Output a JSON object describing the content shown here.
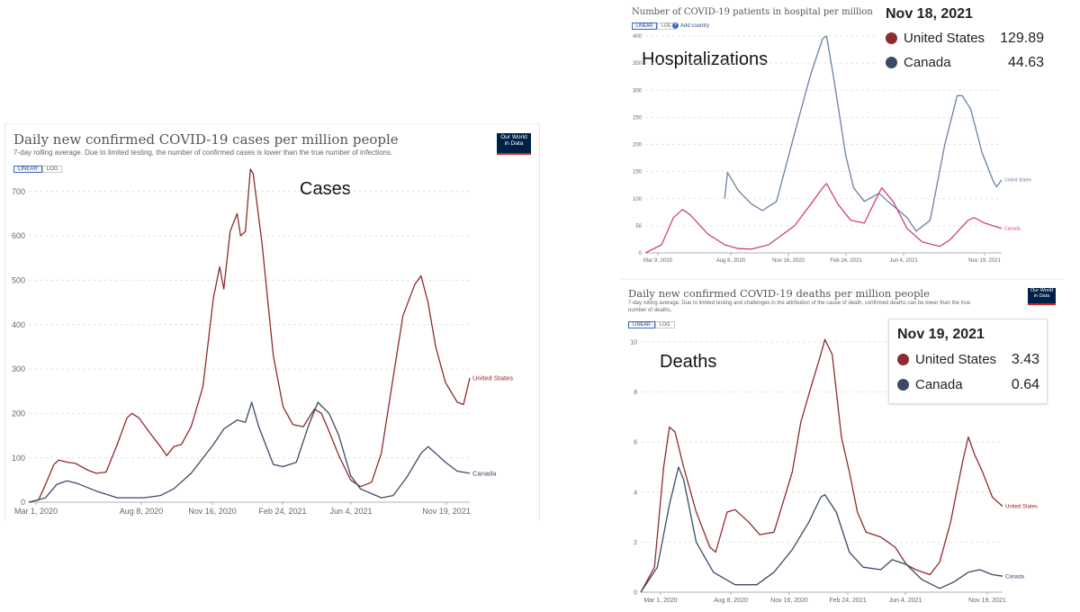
{
  "colors": {
    "us": "#8d2b2e",
    "canada": "#3b4a66",
    "us_hosp": "#6b7fa6",
    "canada_hosp": "#d0417a",
    "grid": "#dddddd",
    "axis_text": "#666666"
  },
  "cases": {
    "title": "Daily new confirmed COVID-19 cases per million people",
    "subtitle": "7-day rolling average. Due to limited testing, the number of confirmed cases is lower than the true number of infections.",
    "linear_label": "LINEAR",
    "log_label": "LOG",
    "logo_line1": "Our World",
    "logo_line2": "in Data",
    "big_label": "Cases"
  },
  "hosp": {
    "title": "Number of COVID-19 patients in hospital per million",
    "linear_label": "LINEAR",
    "log_label": "LOG",
    "add_country": "Add country",
    "big_label": "Hospitalizations",
    "tooltip": {
      "date": "Nov 18, 2021",
      "rows": [
        {
          "name": "United States",
          "value": "129.89"
        },
        {
          "name": "Canada",
          "value": "44.63"
        }
      ]
    }
  },
  "deaths": {
    "title": "Daily new confirmed COVID-19 deaths per million people",
    "subtitle_line1": "7-day rolling average. Due to limited testing and challenges in the attribution of the cause of death, confirmed deaths can be lower than the true",
    "subtitle_line2": "number of deaths.",
    "linear_label": "LINEAR",
    "log_label": "LOG",
    "logo_line1": "Our World",
    "logo_line2": "in Data",
    "big_label": "Deaths",
    "tooltip": {
      "date": "Nov 19, 2021",
      "rows": [
        {
          "name": "United States",
          "value": "3.43"
        },
        {
          "name": "Canada",
          "value": "0.64"
        }
      ]
    }
  },
  "chart_data": [
    {
      "type": "line",
      "title": "Daily new confirmed COVID-19 cases per million people",
      "x_ticks": [
        "Mar 1, 2020",
        "Aug 8, 2020",
        "Nov 16, 2020",
        "Feb 24, 2021",
        "Jun 4, 2021",
        "Nov 19, 2021"
      ],
      "x_range": [
        "2020-02-25",
        "2021-11-19"
      ],
      "ylim": [
        0,
        750
      ],
      "y_ticks": [
        0,
        100,
        200,
        300,
        400,
        500,
        600,
        700
      ],
      "grid": true,
      "series": [
        {
          "name": "United States",
          "color": "#8d2b2e",
          "points": [
            [
              "2020-02-25",
              0
            ],
            [
              "2020-03-10",
              5
            ],
            [
              "2020-03-20",
              40
            ],
            [
              "2020-04-01",
              85
            ],
            [
              "2020-04-08",
              95
            ],
            [
              "2020-04-20",
              90
            ],
            [
              "2020-05-01",
              88
            ],
            [
              "2020-05-20",
              72
            ],
            [
              "2020-06-01",
              65
            ],
            [
              "2020-06-15",
              68
            ],
            [
              "2020-07-01",
              130
            ],
            [
              "2020-07-15",
              190
            ],
            [
              "2020-07-22",
              200
            ],
            [
              "2020-08-01",
              190
            ],
            [
              "2020-08-15",
              160
            ],
            [
              "2020-09-01",
              125
            ],
            [
              "2020-09-10",
              105
            ],
            [
              "2020-09-20",
              125
            ],
            [
              "2020-10-01",
              130
            ],
            [
              "2020-10-15",
              170
            ],
            [
              "2020-11-01",
              260
            ],
            [
              "2020-11-16",
              460
            ],
            [
              "2020-11-25",
              530
            ],
            [
              "2020-12-01",
              480
            ],
            [
              "2020-12-10",
              610
            ],
            [
              "2020-12-20",
              650
            ],
            [
              "2020-12-25",
              600
            ],
            [
              "2021-01-01",
              610
            ],
            [
              "2021-01-08",
              750
            ],
            [
              "2021-01-12",
              740
            ],
            [
              "2021-01-25",
              580
            ],
            [
              "2021-02-10",
              330
            ],
            [
              "2021-02-24",
              215
            ],
            [
              "2021-03-10",
              175
            ],
            [
              "2021-03-25",
              170
            ],
            [
              "2021-04-10",
              210
            ],
            [
              "2021-04-20",
              200
            ],
            [
              "2021-05-01",
              160
            ],
            [
              "2021-05-15",
              105
            ],
            [
              "2021-06-01",
              50
            ],
            [
              "2021-06-15",
              35
            ],
            [
              "2021-07-01",
              45
            ],
            [
              "2021-07-15",
              110
            ],
            [
              "2021-08-01",
              280
            ],
            [
              "2021-08-15",
              420
            ],
            [
              "2021-09-01",
              490
            ],
            [
              "2021-09-10",
              510
            ],
            [
              "2021-09-20",
              450
            ],
            [
              "2021-10-01",
              350
            ],
            [
              "2021-10-15",
              270
            ],
            [
              "2021-11-01",
              225
            ],
            [
              "2021-11-10",
              220
            ],
            [
              "2021-11-19",
              280
            ]
          ]
        },
        {
          "name": "Canada",
          "color": "#3b4a66",
          "points": [
            [
              "2020-02-25",
              0
            ],
            [
              "2020-03-20",
              10
            ],
            [
              "2020-04-05",
              40
            ],
            [
              "2020-04-20",
              48
            ],
            [
              "2020-05-05",
              42
            ],
            [
              "2020-06-01",
              25
            ],
            [
              "2020-07-01",
              10
            ],
            [
              "2020-08-08",
              10
            ],
            [
              "2020-09-01",
              15
            ],
            [
              "2020-09-20",
              30
            ],
            [
              "2020-10-15",
              65
            ],
            [
              "2020-11-16",
              130
            ],
            [
              "2020-12-01",
              165
            ],
            [
              "2020-12-20",
              185
            ],
            [
              "2021-01-01",
              180
            ],
            [
              "2021-01-10",
              225
            ],
            [
              "2021-01-20",
              170
            ],
            [
              "2021-02-10",
              85
            ],
            [
              "2021-02-24",
              80
            ],
            [
              "2021-03-15",
              90
            ],
            [
              "2021-04-01",
              170
            ],
            [
              "2021-04-15",
              225
            ],
            [
              "2021-05-01",
              200
            ],
            [
              "2021-05-15",
              150
            ],
            [
              "2021-06-01",
              60
            ],
            [
              "2021-06-15",
              30
            ],
            [
              "2021-07-15",
              10
            ],
            [
              "2021-08-01",
              15
            ],
            [
              "2021-08-20",
              55
            ],
            [
              "2021-09-10",
              110
            ],
            [
              "2021-09-20",
              125
            ],
            [
              "2021-10-01",
              110
            ],
            [
              "2021-10-15",
              90
            ],
            [
              "2021-11-01",
              70
            ],
            [
              "2021-11-19",
              65
            ]
          ]
        }
      ]
    },
    {
      "type": "line",
      "title": "Number of COVID-19 patients in hospital per million",
      "x_ticks": [
        "Mar 9, 2020",
        "Aug 8, 2020",
        "Nov 16, 2020",
        "Feb 24, 2021",
        "Jun 4, 2021",
        "Nov 19, 2021"
      ],
      "x_range": [
        "2020-02-25",
        "2021-11-19"
      ],
      "ylim": [
        0,
        400
      ],
      "y_ticks": [
        0,
        50,
        100,
        150,
        200,
        250,
        300,
        350,
        400
      ],
      "grid": true,
      "series": [
        {
          "name": "United States",
          "color": "#6b7fa6",
          "points": [
            [
              "2020-07-15",
              100
            ],
            [
              "2020-07-20",
              148
            ],
            [
              "2020-07-25",
              140
            ],
            [
              "2020-08-08",
              115
            ],
            [
              "2020-09-01",
              90
            ],
            [
              "2020-09-20",
              78
            ],
            [
              "2020-10-15",
              95
            ],
            [
              "2020-11-16",
              220
            ],
            [
              "2020-12-15",
              330
            ],
            [
              "2021-01-05",
              395
            ],
            [
              "2021-01-12",
              400
            ],
            [
              "2021-01-25",
              320
            ],
            [
              "2021-02-15",
              180
            ],
            [
              "2021-03-01",
              120
            ],
            [
              "2021-03-20",
              95
            ],
            [
              "2021-04-15",
              110
            ],
            [
              "2021-05-01",
              95
            ],
            [
              "2021-06-04",
              65
            ],
            [
              "2021-06-20",
              40
            ],
            [
              "2021-07-15",
              60
            ],
            [
              "2021-08-10",
              200
            ],
            [
              "2021-09-01",
              290
            ],
            [
              "2021-09-10",
              290
            ],
            [
              "2021-09-25",
              265
            ],
            [
              "2021-10-15",
              185
            ],
            [
              "2021-11-05",
              130
            ],
            [
              "2021-11-10",
              122
            ],
            [
              "2021-11-19",
              135
            ]
          ]
        },
        {
          "name": "Canada",
          "color": "#d0417a",
          "points": [
            [
              "2020-02-25",
              0
            ],
            [
              "2020-03-25",
              15
            ],
            [
              "2020-04-15",
              65
            ],
            [
              "2020-05-01",
              80
            ],
            [
              "2020-05-15",
              70
            ],
            [
              "2020-06-15",
              35
            ],
            [
              "2020-07-15",
              15
            ],
            [
              "2020-08-08",
              8
            ],
            [
              "2020-09-01",
              7
            ],
            [
              "2020-10-01",
              15
            ],
            [
              "2020-11-16",
              50
            ],
            [
              "2020-12-15",
              90
            ],
            [
              "2021-01-05",
              120
            ],
            [
              "2021-01-12",
              128
            ],
            [
              "2021-02-01",
              90
            ],
            [
              "2021-02-24",
              60
            ],
            [
              "2021-03-20",
              55
            ],
            [
              "2021-04-10",
              100
            ],
            [
              "2021-04-20",
              120
            ],
            [
              "2021-05-10",
              95
            ],
            [
              "2021-06-04",
              45
            ],
            [
              "2021-07-01",
              20
            ],
            [
              "2021-08-01",
              12
            ],
            [
              "2021-08-20",
              25
            ],
            [
              "2021-09-20",
              60
            ],
            [
              "2021-10-01",
              65
            ],
            [
              "2021-10-20",
              55
            ],
            [
              "2021-11-19",
              45
            ]
          ]
        }
      ]
    },
    {
      "type": "line",
      "title": "Daily new confirmed COVID-19 deaths per million people",
      "x_ticks": [
        "Mar 1, 2020",
        "Aug 8, 2020",
        "Nov 16, 2020",
        "Feb 24, 2021",
        "Jun 4, 2021",
        "Nov 19, 2021"
      ],
      "x_range": [
        "2020-02-25",
        "2021-11-19"
      ],
      "ylim": [
        0,
        10
      ],
      "y_ticks": [
        0,
        2,
        4,
        6,
        8,
        10
      ],
      "grid": true,
      "series": [
        {
          "name": "United States",
          "color": "#8d2b2e",
          "points": [
            [
              "2020-02-25",
              0
            ],
            [
              "2020-03-20",
              1
            ],
            [
              "2020-04-05",
              5
            ],
            [
              "2020-04-15",
              6.6
            ],
            [
              "2020-04-25",
              6.4
            ],
            [
              "2020-05-10",
              5
            ],
            [
              "2020-06-01",
              3.2
            ],
            [
              "2020-06-25",
              1.8
            ],
            [
              "2020-07-05",
              1.6
            ],
            [
              "2020-07-25",
              3.2
            ],
            [
              "2020-08-08",
              3.3
            ],
            [
              "2020-09-01",
              2.8
            ],
            [
              "2020-09-20",
              2.3
            ],
            [
              "2020-10-15",
              2.4
            ],
            [
              "2020-11-16",
              4.8
            ],
            [
              "2020-12-01",
              6.8
            ],
            [
              "2020-12-20",
              8.3
            ],
            [
              "2021-01-05",
              9.5
            ],
            [
              "2021-01-12",
              10.1
            ],
            [
              "2021-01-25",
              9.5
            ],
            [
              "2021-02-10",
              6.2
            ],
            [
              "2021-02-24",
              4.8
            ],
            [
              "2021-03-10",
              3.2
            ],
            [
              "2021-03-25",
              2.4
            ],
            [
              "2021-04-20",
              2.2
            ],
            [
              "2021-05-15",
              1.8
            ],
            [
              "2021-06-04",
              1.1
            ],
            [
              "2021-06-20",
              0.9
            ],
            [
              "2021-07-15",
              0.7
            ],
            [
              "2021-08-01",
              1.2
            ],
            [
              "2021-08-20",
              2.8
            ],
            [
              "2021-09-10",
              5.2
            ],
            [
              "2021-09-20",
              6.2
            ],
            [
              "2021-10-01",
              5.5
            ],
            [
              "2021-10-15",
              4.8
            ],
            [
              "2021-11-01",
              3.8
            ],
            [
              "2021-11-19",
              3.43
            ]
          ]
        },
        {
          "name": "Canada",
          "color": "#3b4a66",
          "points": [
            [
              "2020-02-25",
              0
            ],
            [
              "2020-03-25",
              1
            ],
            [
              "2020-04-15",
              3.5
            ],
            [
              "2020-05-01",
              5
            ],
            [
              "2020-05-10",
              4.5
            ],
            [
              "2020-06-01",
              2
            ],
            [
              "2020-07-01",
              0.8
            ],
            [
              "2020-08-08",
              0.3
            ],
            [
              "2020-09-15",
              0.3
            ],
            [
              "2020-10-15",
              0.8
            ],
            [
              "2020-11-16",
              1.7
            ],
            [
              "2020-12-15",
              2.8
            ],
            [
              "2021-01-05",
              3.8
            ],
            [
              "2021-01-12",
              3.9
            ],
            [
              "2021-02-01",
              3.2
            ],
            [
              "2021-02-24",
              1.6
            ],
            [
              "2021-03-20",
              1
            ],
            [
              "2021-04-20",
              0.9
            ],
            [
              "2021-05-10",
              1.3
            ],
            [
              "2021-06-04",
              1.1
            ],
            [
              "2021-07-01",
              0.5
            ],
            [
              "2021-08-01",
              0.15
            ],
            [
              "2021-08-25",
              0.4
            ],
            [
              "2021-09-20",
              0.8
            ],
            [
              "2021-10-10",
              0.9
            ],
            [
              "2021-11-01",
              0.7
            ],
            [
              "2021-11-19",
              0.64
            ]
          ]
        }
      ]
    }
  ]
}
